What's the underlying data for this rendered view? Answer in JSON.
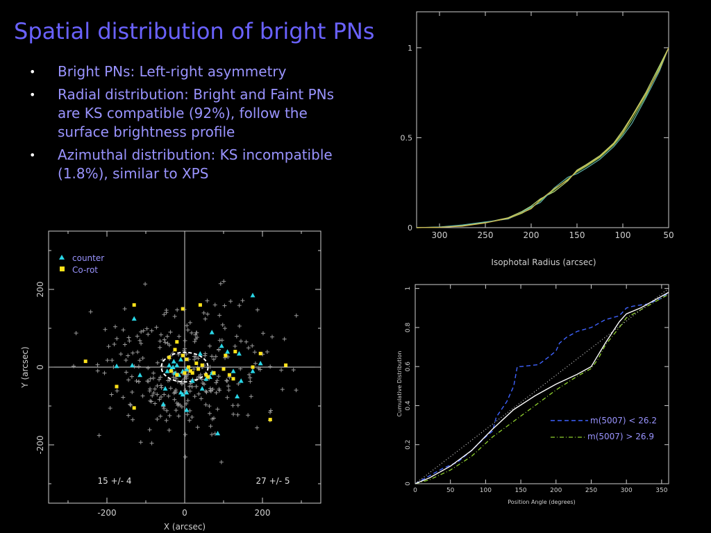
{
  "slide": {
    "title": "Spatial distribution of bright PNs",
    "bullets": [
      "Bright PNs: Left-right asymmetry",
      "Radial distribution: Bright and Faint PNs are KS compatible (92%), follow the surface brightness profile",
      "Azimuthal distribution: KS incompatible (1.8%), similar to XPS"
    ]
  },
  "colors": {
    "title": "#6a62ff",
    "bullet_text": "#9a94ff",
    "counter": "#29d6e6",
    "corot": "#ffe21a",
    "background_pn": "#9a9a9a",
    "series_bright": "#3f63ff",
    "series_faint": "#8fd12e"
  },
  "chart_data": [
    {
      "type": "scatter",
      "xlabel": "X (arcsec)",
      "ylabel": "Y (arcsec)",
      "xlim": [
        -350,
        350
      ],
      "ylim": [
        -350,
        350
      ],
      "xticks": [
        "-200",
        "0",
        "200"
      ],
      "yticks": [
        "-200",
        "0",
        "200"
      ],
      "legend": {
        "placement": "top-left",
        "entries": [
          "counter",
          "Co-rot"
        ]
      },
      "annotations": [
        "15 +/- 4",
        "27 +/- 5"
      ],
      "series": [
        {
          "name": "counter",
          "marker": "triangle",
          "points": [
            [
              -175,
              3
            ],
            [
              -130,
              125
            ],
            [
              -135,
              5
            ],
            [
              -115,
              -20
            ],
            [
              -55,
              -95
            ],
            [
              -50,
              -55
            ],
            [
              -45,
              -10
            ],
            [
              -40,
              5
            ],
            [
              -35,
              -5
            ],
            [
              -30,
              0
            ],
            [
              -28,
              15
            ],
            [
              -25,
              -15
            ],
            [
              -20,
              5
            ],
            [
              -15,
              -20
            ],
            [
              -10,
              20
            ],
            [
              -5,
              -10
            ],
            [
              5,
              -5
            ],
            [
              -10,
              -65
            ],
            [
              -5,
              -70
            ],
            [
              5,
              -65
            ],
            [
              20,
              -35
            ],
            [
              5,
              -110
            ],
            [
              40,
              35
            ],
            [
              45,
              -55
            ],
            [
              55,
              -30
            ],
            [
              65,
              -25
            ],
            [
              70,
              -15
            ],
            [
              75,
              -15
            ],
            [
              70,
              90
            ],
            [
              95,
              55
            ],
            [
              110,
              40
            ],
            [
              125,
              -10
            ],
            [
              140,
              35
            ],
            [
              145,
              -35
            ],
            [
              135,
              -75
            ],
            [
              175,
              -10
            ],
            [
              85,
              -170
            ],
            [
              195,
              10
            ],
            [
              175,
              185
            ]
          ]
        },
        {
          "name": "Co-rot",
          "marker": "square",
          "points": [
            [
              -130,
              160
            ],
            [
              -255,
              15
            ],
            [
              -175,
              -50
            ],
            [
              -130,
              -105
            ],
            [
              -20,
              65
            ],
            [
              -25,
              45
            ],
            [
              -40,
              25
            ],
            [
              -35,
              -10
            ],
            [
              -20,
              -20
            ],
            [
              -5,
              30
            ],
            [
              5,
              20
            ],
            [
              0,
              -15
            ],
            [
              10,
              0
            ],
            [
              15,
              -10
            ],
            [
              30,
              10
            ],
            [
              45,
              5
            ],
            [
              55,
              -20
            ],
            [
              75,
              -15
            ],
            [
              60,
              -25
            ],
            [
              100,
              -5
            ],
            [
              105,
              30
            ],
            [
              115,
              -20
            ],
            [
              130,
              40
            ],
            [
              125,
              -30
            ],
            [
              175,
              0
            ],
            [
              195,
              35
            ],
            [
              220,
              -135
            ],
            [
              260,
              5
            ],
            [
              35,
              -5
            ],
            [
              20,
              -15
            ],
            [
              -5,
              150
            ],
            [
              40,
              160
            ]
          ]
        }
      ]
    },
    {
      "type": "line",
      "xlabel": "Isophotal Radius (arcsec)",
      "ylabel": "",
      "xlim": [
        325,
        50
      ],
      "ylim": [
        0,
        1.2
      ],
      "xticks": [
        "300",
        "250",
        "200",
        "150",
        "100",
        "50"
      ],
      "yticks": [
        "0",
        "0.5",
        "1"
      ],
      "series": [
        {
          "x": [
            325,
            300,
            275,
            250,
            225,
            210,
            200,
            190,
            175,
            160,
            150,
            140,
            125,
            110,
            100,
            90,
            75,
            60,
            50
          ],
          "y": [
            0,
            0.002,
            0.01,
            0.03,
            0.05,
            0.08,
            0.11,
            0.15,
            0.21,
            0.27,
            0.31,
            0.34,
            0.39,
            0.46,
            0.52,
            0.6,
            0.73,
            0.89,
            1.0
          ]
        },
        {
          "x": [
            325,
            300,
            275,
            250,
            225,
            210,
            200,
            190,
            175,
            160,
            150,
            140,
            125,
            110,
            100,
            90,
            75,
            60,
            50
          ],
          "y": [
            0,
            0.003,
            0.012,
            0.028,
            0.055,
            0.09,
            0.12,
            0.16,
            0.2,
            0.26,
            0.32,
            0.35,
            0.4,
            0.47,
            0.54,
            0.62,
            0.75,
            0.9,
            1.0
          ]
        },
        {
          "x": [
            325,
            300,
            275,
            250,
            225,
            210,
            200,
            190,
            175,
            160,
            150,
            140,
            125,
            110,
            100,
            90,
            75,
            60,
            50
          ],
          "y": [
            0,
            0.004,
            0.015,
            0.032,
            0.048,
            0.085,
            0.115,
            0.14,
            0.22,
            0.28,
            0.3,
            0.33,
            0.38,
            0.45,
            0.51,
            0.58,
            0.72,
            0.87,
            1.0
          ]
        },
        {
          "x": [
            325,
            300,
            275,
            250,
            225,
            210,
            200,
            190,
            175,
            160,
            150,
            140,
            125,
            110,
            100,
            90,
            75,
            60,
            50
          ],
          "y": [
            0,
            0.002,
            0.008,
            0.026,
            0.052,
            0.082,
            0.105,
            0.155,
            0.215,
            0.265,
            0.315,
            0.345,
            0.395,
            0.465,
            0.53,
            0.615,
            0.74,
            0.88,
            1.0
          ]
        }
      ]
    },
    {
      "type": "line",
      "xlabel": "Position Angle (degrees)",
      "ylabel": "Cumulative Distribution",
      "xlim": [
        0,
        360
      ],
      "ylim": [
        0,
        1.02
      ],
      "xticks": [
        "0",
        "50",
        "100",
        "150",
        "200",
        "250",
        "300",
        "350"
      ],
      "yticks": [
        "0",
        "0.2",
        "0.4",
        "0.6",
        "0.8",
        "1"
      ],
      "legend": {
        "placement": "bottom-right",
        "entries": [
          "m(5007) < 26.2",
          "m(5007) > 26.9"
        ]
      },
      "series": [
        {
          "name": "m(5007) < 26.2",
          "style": "dashed",
          "x": [
            0,
            20,
            40,
            60,
            80,
            100,
            110,
            115,
            130,
            140,
            145,
            150,
            175,
            190,
            200,
            205,
            215,
            230,
            250,
            270,
            290,
            300,
            310,
            330,
            350,
            360
          ],
          "y": [
            0,
            0.04,
            0.08,
            0.11,
            0.17,
            0.24,
            0.27,
            0.34,
            0.42,
            0.5,
            0.6,
            0.6,
            0.61,
            0.65,
            0.68,
            0.72,
            0.75,
            0.78,
            0.8,
            0.84,
            0.86,
            0.9,
            0.91,
            0.92,
            0.95,
            0.98
          ]
        },
        {
          "name": "m(5007) > 26.9",
          "style": "dash-dot",
          "x": [
            0,
            20,
            50,
            80,
            110,
            140,
            170,
            200,
            230,
            250,
            260,
            270,
            290,
            300,
            320,
            340,
            360
          ],
          "y": [
            0,
            0.02,
            0.07,
            0.14,
            0.24,
            0.32,
            0.4,
            0.48,
            0.55,
            0.59,
            0.64,
            0.71,
            0.8,
            0.85,
            0.89,
            0.93,
            0.97
          ]
        },
        {
          "style": "solid",
          "x": [
            0,
            20,
            50,
            80,
            110,
            140,
            170,
            200,
            230,
            250,
            260,
            270,
            290,
            300,
            320,
            340,
            360
          ],
          "y": [
            0,
            0.03,
            0.09,
            0.17,
            0.28,
            0.38,
            0.45,
            0.51,
            0.56,
            0.6,
            0.66,
            0.72,
            0.83,
            0.87,
            0.9,
            0.94,
            0.98
          ]
        },
        {
          "style": "dotted",
          "x": [
            0,
            360
          ],
          "y": [
            0,
            1
          ]
        }
      ]
    }
  ]
}
